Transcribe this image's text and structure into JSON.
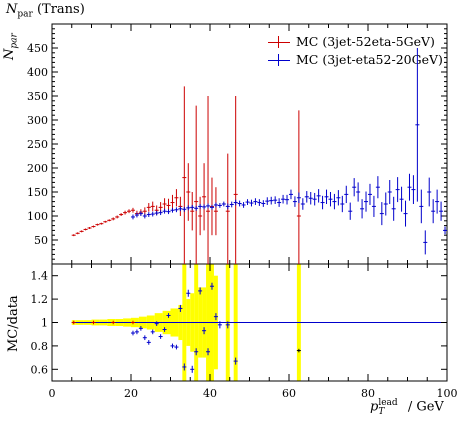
{
  "chart_data": [
    {
      "type": "scatter",
      "panel": "main",
      "title": "N_par (Trans)",
      "ylabel": "N_par",
      "xlim": [
        0,
        100
      ],
      "ylim": [
        0,
        500
      ],
      "yticks": [
        50,
        100,
        150,
        200,
        250,
        300,
        350,
        400,
        450
      ],
      "legend_position": "top-right",
      "series": [
        {
          "name": "MC (3jet-52eta-5GeV)",
          "color": "#cc0000",
          "points": [
            {
              "x": 5.5,
              "y": 60,
              "err": 2
            },
            {
              "x": 6.5,
              "y": 64,
              "err": 2
            },
            {
              "x": 7.5,
              "y": 68,
              "err": 2
            },
            {
              "x": 8.5,
              "y": 72,
              "err": 2
            },
            {
              "x": 9.5,
              "y": 75,
              "err": 2
            },
            {
              "x": 10.5,
              "y": 78,
              "err": 2
            },
            {
              "x": 11.5,
              "y": 82,
              "err": 2
            },
            {
              "x": 12.5,
              "y": 84,
              "err": 2
            },
            {
              "x": 13.5,
              "y": 88,
              "err": 2
            },
            {
              "x": 14.5,
              "y": 91,
              "err": 2
            },
            {
              "x": 15.5,
              "y": 94,
              "err": 3
            },
            {
              "x": 16.5,
              "y": 98,
              "err": 3
            },
            {
              "x": 17.5,
              "y": 103,
              "err": 3
            },
            {
              "x": 18.5,
              "y": 107,
              "err": 4
            },
            {
              "x": 19.5,
              "y": 110,
              "err": 4
            },
            {
              "x": 20.5,
              "y": 112,
              "err": 5
            },
            {
              "x": 21.5,
              "y": 105,
              "err": 6
            },
            {
              "x": 22.5,
              "y": 108,
              "err": 6
            },
            {
              "x": 23.5,
              "y": 110,
              "err": 8
            },
            {
              "x": 24.5,
              "y": 118,
              "err": 9
            },
            {
              "x": 25.5,
              "y": 120,
              "err": 10
            },
            {
              "x": 26.5,
              "y": 112,
              "err": 10
            },
            {
              "x": 27.5,
              "y": 118,
              "err": 11
            },
            {
              "x": 28.5,
              "y": 125,
              "err": 12
            },
            {
              "x": 29.5,
              "y": 122,
              "err": 14
            },
            {
              "x": 30.5,
              "y": 128,
              "err": 16
            },
            {
              "x": 31.5,
              "y": 138,
              "err": 18
            },
            {
              "x": 32.5,
              "y": 120,
              "err": 20
            },
            {
              "x": 33.5,
              "y": 180,
              "err": 190
            },
            {
              "x": 34.5,
              "y": 150,
              "err": 60
            },
            {
              "x": 35.5,
              "y": 110,
              "err": 40
            },
            {
              "x": 36.5,
              "y": 130,
              "err": 200
            },
            {
              "x": 37.5,
              "y": 100,
              "err": 40
            },
            {
              "x": 38.5,
              "y": 140,
              "err": 70
            },
            {
              "x": 39.5,
              "y": 110,
              "err": 240
            },
            {
              "x": 40.5,
              "y": 120,
              "err": 60
            },
            {
              "x": 41.5,
              "y": 110,
              "err": 50
            },
            {
              "x": 44.5,
              "y": 110,
              "err": 120
            },
            {
              "x": 46.5,
              "y": 145,
              "err": 205
            },
            {
              "x": 62.5,
              "y": 100,
              "err": 220
            }
          ]
        },
        {
          "name": "MC (3jet-eta52-20GeV)",
          "color": "#0000cc",
          "points": [
            {
              "x": 20.5,
              "y": 98,
              "err": 5
            },
            {
              "x": 21.5,
              "y": 102,
              "err": 5
            },
            {
              "x": 22.5,
              "y": 105,
              "err": 5
            },
            {
              "x": 23.5,
              "y": 100,
              "err": 5
            },
            {
              "x": 24.5,
              "y": 103,
              "err": 5
            },
            {
              "x": 25.5,
              "y": 104,
              "err": 5
            },
            {
              "x": 26.5,
              "y": 106,
              "err": 5
            },
            {
              "x": 27.5,
              "y": 107,
              "err": 5
            },
            {
              "x": 28.5,
              "y": 110,
              "err": 5
            },
            {
              "x": 29.5,
              "y": 109,
              "err": 5
            },
            {
              "x": 30.5,
              "y": 112,
              "err": 5
            },
            {
              "x": 31.5,
              "y": 113,
              "err": 5
            },
            {
              "x": 32.5,
              "y": 115,
              "err": 5
            },
            {
              "x": 33.5,
              "y": 114,
              "err": 5
            },
            {
              "x": 34.5,
              "y": 117,
              "err": 5
            },
            {
              "x": 35.5,
              "y": 118,
              "err": 5
            },
            {
              "x": 36.5,
              "y": 116,
              "err": 5
            },
            {
              "x": 37.5,
              "y": 120,
              "err": 5
            },
            {
              "x": 38.5,
              "y": 119,
              "err": 5
            },
            {
              "x": 39.5,
              "y": 121,
              "err": 5
            },
            {
              "x": 40.5,
              "y": 118,
              "err": 5
            },
            {
              "x": 41.5,
              "y": 123,
              "err": 5
            },
            {
              "x": 42.5,
              "y": 122,
              "err": 5
            },
            {
              "x": 43.5,
              "y": 125,
              "err": 5
            },
            {
              "x": 44.5,
              "y": 120,
              "err": 6
            },
            {
              "x": 45.5,
              "y": 124,
              "err": 6
            },
            {
              "x": 46.5,
              "y": 128,
              "err": 6
            },
            {
              "x": 47.5,
              "y": 126,
              "err": 6
            },
            {
              "x": 48.5,
              "y": 123,
              "err": 6
            },
            {
              "x": 49.5,
              "y": 129,
              "err": 6
            },
            {
              "x": 50.5,
              "y": 127,
              "err": 7
            },
            {
              "x": 51.5,
              "y": 130,
              "err": 7
            },
            {
              "x": 52.5,
              "y": 128,
              "err": 7
            },
            {
              "x": 53.5,
              "y": 126,
              "err": 7
            },
            {
              "x": 54.5,
              "y": 131,
              "err": 8
            },
            {
              "x": 55.5,
              "y": 132,
              "err": 8
            },
            {
              "x": 56.5,
              "y": 133,
              "err": 8
            },
            {
              "x": 57.5,
              "y": 128,
              "err": 9
            },
            {
              "x": 58.5,
              "y": 135,
              "err": 9
            },
            {
              "x": 59.5,
              "y": 134,
              "err": 10
            },
            {
              "x": 60.5,
              "y": 145,
              "err": 10
            },
            {
              "x": 61.5,
              "y": 130,
              "err": 11
            },
            {
              "x": 62.5,
              "y": 138,
              "err": 11
            },
            {
              "x": 63.5,
              "y": 125,
              "err": 12
            },
            {
              "x": 64.5,
              "y": 140,
              "err": 12
            },
            {
              "x": 65.5,
              "y": 137,
              "err": 13
            },
            {
              "x": 66.5,
              "y": 135,
              "err": 13
            },
            {
              "x": 67.5,
              "y": 142,
              "err": 14
            },
            {
              "x": 68.5,
              "y": 128,
              "err": 14
            },
            {
              "x": 69.5,
              "y": 140,
              "err": 15
            },
            {
              "x": 70.5,
              "y": 135,
              "err": 15
            },
            {
              "x": 71.5,
              "y": 130,
              "err": 16
            },
            {
              "x": 72.5,
              "y": 138,
              "err": 16
            },
            {
              "x": 73.5,
              "y": 125,
              "err": 17
            },
            {
              "x": 74.5,
              "y": 145,
              "err": 18
            },
            {
              "x": 75.5,
              "y": 110,
              "err": 18
            },
            {
              "x": 76.5,
              "y": 160,
              "err": 19
            },
            {
              "x": 77.5,
              "y": 150,
              "err": 20
            },
            {
              "x": 78.5,
              "y": 115,
              "err": 20
            },
            {
              "x": 79.5,
              "y": 130,
              "err": 21
            },
            {
              "x": 80.5,
              "y": 145,
              "err": 22
            },
            {
              "x": 81.5,
              "y": 120,
              "err": 22
            },
            {
              "x": 82.5,
              "y": 160,
              "err": 23
            },
            {
              "x": 83.5,
              "y": 105,
              "err": 24
            },
            {
              "x": 84.5,
              "y": 125,
              "err": 24
            },
            {
              "x": 85.5,
              "y": 150,
              "err": 25
            },
            {
              "x": 86.5,
              "y": 115,
              "err": 25
            },
            {
              "x": 87.5,
              "y": 155,
              "err": 26
            },
            {
              "x": 88.5,
              "y": 135,
              "err": 26
            },
            {
              "x": 89.5,
              "y": 105,
              "err": 27
            },
            {
              "x": 90.5,
              "y": 160,
              "err": 28
            },
            {
              "x": 91.5,
              "y": 155,
              "err": 30
            },
            {
              "x": 92.5,
              "y": 290,
              "err": 160
            },
            {
              "x": 93.5,
              "y": 120,
              "err": 35
            },
            {
              "x": 94.5,
              "y": 45,
              "err": 25
            },
            {
              "x": 95.5,
              "y": 150,
              "err": 30
            },
            {
              "x": 96.5,
              "y": 110,
              "err": 25
            },
            {
              "x": 97.5,
              "y": 130,
              "err": 25
            },
            {
              "x": 98.5,
              "y": 110,
              "err": 20
            },
            {
              "x": 99.5,
              "y": 70,
              "err": 8
            }
          ]
        }
      ]
    },
    {
      "type": "scatter",
      "panel": "ratio",
      "ylabel": "MC/data",
      "xlabel": "p_T^lead / GeV",
      "xlim": [
        0,
        100
      ],
      "ylim": [
        0.5,
        1.5
      ],
      "yticks": [
        0.6,
        0.8,
        1,
        1.2,
        1.4
      ],
      "xticks": [
        0,
        20,
        40,
        60,
        80,
        100
      ],
      "reference_line": 1,
      "band_color": "#ffff00",
      "band": [
        {
          "x0": 5,
          "x1": 6,
          "half": 0.02
        },
        {
          "x0": 6,
          "x1": 8,
          "half": 0.02
        },
        {
          "x0": 8,
          "x1": 10,
          "half": 0.02
        },
        {
          "x0": 10,
          "x1": 12,
          "half": 0.025
        },
        {
          "x0": 12,
          "x1": 14,
          "half": 0.025
        },
        {
          "x0": 14,
          "x1": 16,
          "half": 0.03
        },
        {
          "x0": 16,
          "x1": 18,
          "half": 0.03
        },
        {
          "x0": 18,
          "x1": 20,
          "half": 0.035
        },
        {
          "x0": 20,
          "x1": 22,
          "half": 0.04
        },
        {
          "x0": 22,
          "x1": 24,
          "half": 0.05
        },
        {
          "x0": 24,
          "x1": 26,
          "half": 0.06
        },
        {
          "x0": 26,
          "x1": 28,
          "half": 0.08
        },
        {
          "x0": 28,
          "x1": 30,
          "half": 0.1
        },
        {
          "x0": 30,
          "x1": 32,
          "half": 0.12
        },
        {
          "x0": 32,
          "x1": 33,
          "half": 0.15
        },
        {
          "x0": 33,
          "x1": 34,
          "half": 0.6
        },
        {
          "x0": 34,
          "x1": 35,
          "half": 0.2
        },
        {
          "x0": 35,
          "x1": 36,
          "half": 0.25
        },
        {
          "x0": 36,
          "x1": 37,
          "half": 0.6
        },
        {
          "x0": 37,
          "x1": 38,
          "half": 0.3
        },
        {
          "x0": 38,
          "x1": 39,
          "half": 0.3
        },
        {
          "x0": 39,
          "x1": 41,
          "half": 0.6
        },
        {
          "x0": 41,
          "x1": 42,
          "half": 0.4
        },
        {
          "x0": 44,
          "x1": 45,
          "half": 0.6
        },
        {
          "x0": 46,
          "x1": 47,
          "half": 0.6
        },
        {
          "x0": 62,
          "x1": 63,
          "half": 0.6
        }
      ],
      "series": [
        {
          "name": "MC (3jet-52eta-5GeV)",
          "color": "#cc0000",
          "points": [
            {
              "x": 5.5,
              "y": 1.0
            },
            {
              "x": 10.5,
              "y": 1.0
            },
            {
              "x": 15.5,
              "y": 1.0
            },
            {
              "x": 20.5,
              "y": 1.0
            },
            {
              "x": 62.5,
              "y": 0.76
            }
          ]
        },
        {
          "name": "MC (3jet-eta52-20GeV)",
          "color": "#0000cc",
          "points": [
            {
              "x": 20.5,
              "y": 0.91,
              "err": 0.02
            },
            {
              "x": 21.5,
              "y": 0.92,
              "err": 0.02
            },
            {
              "x": 22.5,
              "y": 0.95,
              "err": 0.02
            },
            {
              "x": 23.5,
              "y": 0.87,
              "err": 0.02
            },
            {
              "x": 24.5,
              "y": 0.83,
              "err": 0.02
            },
            {
              "x": 25.5,
              "y": 0.92,
              "err": 0.02
            },
            {
              "x": 26.5,
              "y": 0.99,
              "err": 0.02
            },
            {
              "x": 27.5,
              "y": 0.88,
              "err": 0.02
            },
            {
              "x": 28.5,
              "y": 0.94,
              "err": 0.02
            },
            {
              "x": 29.5,
              "y": 1.06,
              "err": 0.02
            },
            {
              "x": 30.5,
              "y": 0.8,
              "err": 0.02
            },
            {
              "x": 31.5,
              "y": 0.79,
              "err": 0.02
            },
            {
              "x": 32.5,
              "y": 1.12,
              "err": 0.03
            },
            {
              "x": 33.5,
              "y": 0.62,
              "err": 0.03
            },
            {
              "x": 34.5,
              "y": 1.25,
              "err": 0.03
            },
            {
              "x": 35.5,
              "y": 0.6,
              "err": 0.03
            },
            {
              "x": 36.5,
              "y": 0.75,
              "err": 0.03
            },
            {
              "x": 37.5,
              "y": 1.27,
              "err": 0.03
            },
            {
              "x": 38.5,
              "y": 0.93,
              "err": 0.03
            },
            {
              "x": 39.5,
              "y": 0.75,
              "err": 0.03
            },
            {
              "x": 40.5,
              "y": 1.31,
              "err": 0.03
            },
            {
              "x": 41.5,
              "y": 1.05,
              "err": 0.03
            },
            {
              "x": 42.5,
              "y": 0.98,
              "err": 0.03
            },
            {
              "x": 44.5,
              "y": 0.98,
              "err": 0.03
            },
            {
              "x": 46.5,
              "y": 0.67,
              "err": 0.03
            }
          ]
        }
      ]
    }
  ]
}
